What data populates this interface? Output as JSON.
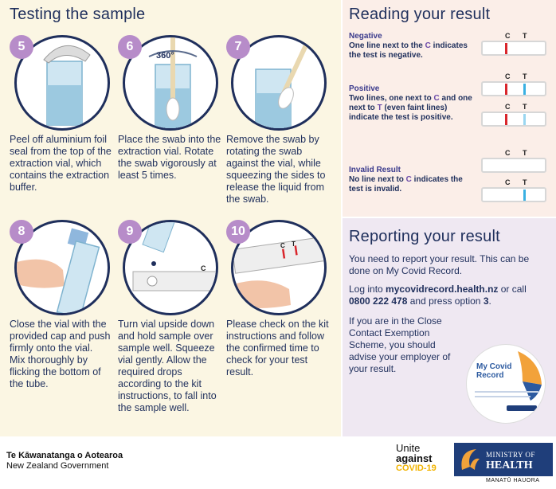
{
  "left": {
    "title": "Testing the sample",
    "steps": [
      {
        "num": "5",
        "desc": "Peel off aluminium foil seal from the top of the extraction vial, which contains the extraction buffer."
      },
      {
        "num": "6",
        "label": "360°",
        "desc": "Place the swab into the extraction vial. Rotate the swab vigorously at least 5 times."
      },
      {
        "num": "7",
        "desc": "Remove the swab by rotating the swab against the vial, while squeezing the sides to release the liquid from the swab."
      },
      {
        "num": "8",
        "desc": "Close the vial with the provided cap and push firmly onto the vial.\nMix thoroughly by flicking the bottom of the tube."
      },
      {
        "num": "9",
        "desc": "Turn vial upside down and hold sample over sample well. Squeeze vial gently. Allow the required drops according to the kit instructions, to fall into the sample well."
      },
      {
        "num": "10",
        "desc": "Please check on the kit instructions and follow the confirmed time to check for your test result."
      }
    ],
    "step9_cassette_label": "C",
    "step10_c": "C",
    "step10_t": "T"
  },
  "reading": {
    "title": "Reading your result",
    "negative_head": "Negative",
    "negative_text_1": "One line next to the ",
    "negative_text_c": "C",
    "negative_text_2": " indicates the test is negative.",
    "positive_head": "Positive",
    "positive_text_1": "Two lines, one next to ",
    "positive_text_c": "C",
    "positive_text_2": " and one next to ",
    "positive_text_t": "T",
    "positive_text_3": " (even faint lines) indicate the test is positive.",
    "invalid_head": "Invalid Result",
    "invalid_text_1": "No line next to ",
    "invalid_text_c": "C",
    "invalid_text_2": " indicates the test is invalid.",
    "strip_c": "C",
    "strip_t": "T",
    "colors": {
      "c_line": "#d9262c",
      "t_line": "#3ab0e2",
      "t_faint": "#9ad6f0"
    }
  },
  "reporting": {
    "title": "Reporting your result",
    "p1": "You need to report your result. This can be done on My Covid Record.",
    "p2_a": "Log into ",
    "p2_link": "mycovidrecord.health.nz",
    "p2_b": " or call ",
    "p2_phone": "0800 222 478",
    "p2_c": " and press option ",
    "p2_opt": "3",
    "p2_d": ".",
    "p3": "If you are in the Close Contact Exemption Scheme, you should advise your employer of your result.",
    "card_title": "My Covid Record"
  },
  "footer": {
    "gov_maori": "Te Kāwanatanga o Aotearoa",
    "gov_english": "New Zealand Government",
    "unite_1": "Unite",
    "unite_2": "against",
    "unite_3": "COVID-19",
    "moh_1": "MINISTRY OF",
    "moh_2": "HEALTH",
    "moh_3": "MANATŪ HAUORA"
  }
}
